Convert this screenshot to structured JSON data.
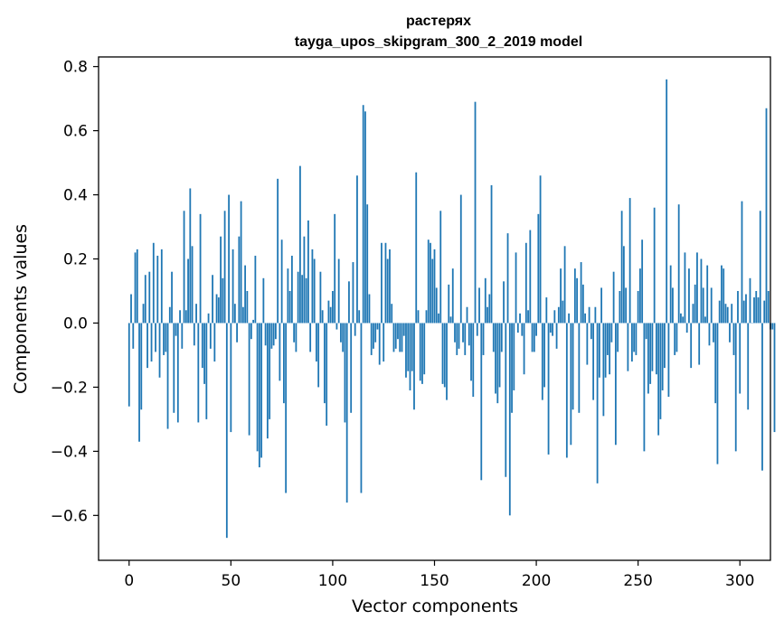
{
  "chart_data": {
    "type": "bar",
    "title": "растерях",
    "subtitle": "tayga_upos_skipgram_300_2_2019 model",
    "xlabel": "Vector components",
    "ylabel": "Components values",
    "xlim": [
      -15,
      315
    ],
    "ylim": [
      -0.74,
      0.83
    ],
    "x_ticks": [
      0,
      50,
      100,
      150,
      200,
      250,
      300
    ],
    "y_ticks": [
      -0.6,
      -0.4,
      -0.2,
      0.0,
      0.2,
      0.4,
      0.6,
      0.8
    ],
    "x_tick_labels": [
      "0",
      "50",
      "100",
      "150",
      "200",
      "250",
      "300"
    ],
    "y_tick_labels": [
      "−0.6",
      "−0.4",
      "−0.2",
      "0.0",
      "0.2",
      "0.4",
      "0.6",
      "0.8"
    ],
    "bar_color": "#1f77b4",
    "grid": false,
    "legend": "none",
    "values": [
      -0.26,
      0.09,
      -0.08,
      0.22,
      0.23,
      -0.37,
      -0.27,
      0.06,
      0.15,
      -0.14,
      0.16,
      -0.12,
      0.25,
      -0.09,
      0.21,
      -0.17,
      0.23,
      -0.1,
      -0.09,
      -0.33,
      0.05,
      0.16,
      -0.28,
      -0.04,
      -0.31,
      0.04,
      -0.08,
      0.35,
      0.04,
      0.2,
      0.42,
      0.24,
      -0.07,
      0.06,
      -0.31,
      0.34,
      -0.14,
      -0.19,
      -0.3,
      0.03,
      -0.08,
      0.15,
      -0.12,
      0.09,
      0.08,
      0.27,
      0.14,
      0.35,
      -0.67,
      0.4,
      -0.34,
      0.23,
      0.06,
      -0.06,
      0.27,
      0.38,
      0.05,
      0.18,
      0.1,
      -0.35,
      -0.05,
      0.01,
      0.21,
      -0.4,
      -0.45,
      -0.42,
      0.14,
      -0.07,
      -0.36,
      -0.3,
      -0.08,
      -0.07,
      -0.05,
      0.45,
      -0.18,
      0.26,
      -0.25,
      -0.53,
      0.17,
      0.1,
      0.21,
      -0.06,
      -0.09,
      0.16,
      0.49,
      0.15,
      0.27,
      0.14,
      0.32,
      -0.09,
      0.23,
      0.2,
      -0.12,
      -0.2,
      0.16,
      0.04,
      -0.25,
      -0.32,
      0.07,
      0.05,
      0.1,
      0.34,
      -0.02,
      0.2,
      -0.06,
      -0.09,
      -0.31,
      -0.56,
      0.13,
      -0.28,
      0.19,
      -0.04,
      0.46,
      0.04,
      -0.53,
      0.68,
      0.66,
      0.37,
      0.09,
      -0.1,
      -0.08,
      -0.06,
      -0.02,
      -0.13,
      0.25,
      -0.12,
      0.25,
      0.2,
      0.23,
      0.06,
      -0.09,
      -0.08,
      -0.05,
      -0.09,
      -0.09,
      -0.04,
      -0.17,
      -0.15,
      -0.21,
      -0.15,
      -0.27,
      0.47,
      0.04,
      -0.18,
      -0.19,
      -0.16,
      0.04,
      0.26,
      0.25,
      0.2,
      0.23,
      0.11,
      0.03,
      0.35,
      -0.19,
      -0.2,
      -0.24,
      0.12,
      0.02,
      0.17,
      -0.06,
      -0.1,
      -0.08,
      0.4,
      -0.06,
      -0.1,
      0.05,
      -0.07,
      -0.18,
      -0.23,
      0.69,
      -0.04,
      0.11,
      -0.49,
      -0.1,
      0.14,
      0.05,
      0.09,
      0.43,
      -0.09,
      -0.22,
      -0.25,
      -0.2,
      -0.09,
      0.13,
      -0.48,
      0.28,
      -0.6,
      -0.28,
      -0.21,
      0.22,
      -0.03,
      0.03,
      -0.04,
      -0.16,
      0.25,
      0.04,
      0.29,
      -0.09,
      -0.09,
      -0.04,
      0.34,
      0.46,
      -0.24,
      -0.2,
      0.08,
      -0.41,
      -0.03,
      -0.04,
      0.04,
      -0.08,
      0.05,
      0.17,
      0.07,
      0.24,
      -0.42,
      0.03,
      -0.38,
      -0.27,
      0.17,
      0.14,
      -0.28,
      0.19,
      0.12,
      0.03,
      -0.13,
      0.05,
      -0.05,
      -0.24,
      0.05,
      -0.5,
      -0.17,
      0.11,
      -0.29,
      -0.17,
      -0.1,
      -0.16,
      -0.06,
      0.16,
      -0.38,
      -0.09,
      0.1,
      0.35,
      0.24,
      0.11,
      -0.15,
      0.39,
      -0.12,
      -0.09,
      -0.1,
      0.1,
      0.17,
      0.26,
      -0.4,
      -0.05,
      -0.22,
      -0.19,
      -0.15,
      0.36,
      -0.16,
      -0.35,
      -0.3,
      -0.21,
      -0.14,
      0.76,
      -0.23,
      0.18,
      0.11,
      -0.1,
      -0.09,
      0.37,
      0.03,
      0.02,
      0.22,
      -0.03,
      0.17,
      -0.14,
      0.06,
      0.12,
      0.22,
      -0.13,
      0.2,
      0.11,
      0.02,
      0.18,
      -0.07,
      0.11,
      -0.06,
      -0.25,
      -0.44,
      0.07,
      0.18,
      0.17,
      0.06,
      0.05,
      -0.06,
      0.06,
      -0.1,
      -0.4,
      0.1,
      -0.22,
      0.38,
      0.07,
      0.09,
      -0.27,
      0.14,
      0.0,
      0.08,
      0.1,
      0.08,
      0.35,
      -0.46,
      0.07,
      0.67,
      0.1,
      -0.02,
      -0.02,
      -0.34
    ]
  }
}
